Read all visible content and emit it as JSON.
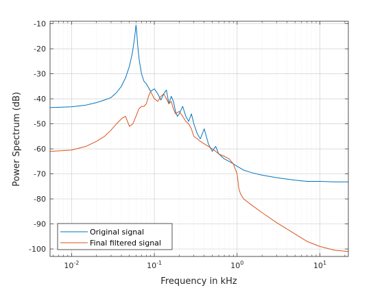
{
  "chart_data": {
    "type": "line",
    "title": "",
    "xlabel": "Frequency in kHz",
    "ylabel": "Power Spectrum (dB)",
    "x_scale": "log",
    "xlim": [
      0.0055,
      22.05
    ],
    "ylim": [
      -103,
      -9
    ],
    "x_ticks": [
      {
        "value": 0.01,
        "base": "10",
        "exp": "-2"
      },
      {
        "value": 0.1,
        "base": "10",
        "exp": "-1"
      },
      {
        "value": 1,
        "base": "10",
        "exp": "0"
      },
      {
        "value": 10,
        "base": "10",
        "exp": "1"
      }
    ],
    "y_ticks": [
      -10,
      -20,
      -30,
      -40,
      -50,
      -60,
      -70,
      -80,
      -90,
      -100
    ],
    "y_tick_labels": [
      "-10",
      "-20",
      "-30",
      "-40",
      "-50",
      "-60",
      "-70",
      "-80",
      "-90",
      "-100"
    ],
    "grid": true,
    "minor_grid": true,
    "legend_placement": "bottom-left",
    "series": [
      {
        "name": "Original signal",
        "color": "#0072BD",
        "x": [
          0.0055,
          0.01,
          0.015,
          0.02,
          0.025,
          0.03,
          0.035,
          0.04,
          0.045,
          0.05,
          0.054,
          0.057,
          0.059,
          0.06,
          0.061,
          0.063,
          0.066,
          0.07,
          0.075,
          0.08,
          0.085,
          0.09,
          0.095,
          0.1,
          0.11,
          0.12,
          0.13,
          0.14,
          0.15,
          0.16,
          0.17,
          0.18,
          0.19,
          0.2,
          0.22,
          0.24,
          0.26,
          0.28,
          0.3,
          0.33,
          0.36,
          0.4,
          0.45,
          0.5,
          0.55,
          0.6,
          0.7,
          0.8,
          0.9,
          1.0,
          1.2,
          1.5,
          2,
          3,
          5,
          7,
          10,
          15,
          22.05
        ],
        "y": [
          -43.5,
          -43.2,
          -42.5,
          -41.5,
          -40.5,
          -39.5,
          -37.5,
          -35,
          -31.5,
          -27,
          -22,
          -17,
          -13,
          -10.5,
          -12.5,
          -19,
          -25,
          -30,
          -33,
          -34,
          -35.5,
          -37,
          -36.5,
          -36,
          -38,
          -40.5,
          -38,
          -36.5,
          -42,
          -39,
          -41,
          -45,
          -47,
          -46,
          -43,
          -47,
          -49,
          -46,
          -50,
          -54,
          -56,
          -52,
          -58,
          -61,
          -59,
          -62,
          -64,
          -65,
          -66,
          -67,
          -68.5,
          -69.5,
          -70.5,
          -71.5,
          -72.5,
          -73,
          -73,
          -73.2,
          -73.2
        ]
      },
      {
        "name": "Final filtered signal",
        "color": "#D95319",
        "x": [
          0.0055,
          0.01,
          0.015,
          0.02,
          0.025,
          0.03,
          0.035,
          0.04,
          0.042,
          0.045,
          0.048,
          0.05,
          0.055,
          0.06,
          0.065,
          0.07,
          0.075,
          0.08,
          0.085,
          0.09,
          0.1,
          0.11,
          0.12,
          0.13,
          0.14,
          0.15,
          0.16,
          0.17,
          0.18,
          0.2,
          0.22,
          0.24,
          0.26,
          0.28,
          0.3,
          0.33,
          0.36,
          0.4,
          0.45,
          0.5,
          0.55,
          0.6,
          0.7,
          0.8,
          0.9,
          1.0,
          1.05,
          1.1,
          1.2,
          1.5,
          2,
          3,
          5,
          7,
          10,
          15,
          22.05
        ],
        "y": [
          -61,
          -60.5,
          -59,
          -57,
          -55,
          -52.5,
          -50,
          -48,
          -47.5,
          -47,
          -49.5,
          -51,
          -50,
          -47,
          -44,
          -43,
          -43,
          -42,
          -39,
          -37,
          -40,
          -41,
          -39,
          -38,
          -40,
          -42,
          -41,
          -44,
          -46,
          -45,
          -47,
          -49,
          -50,
          -52,
          -55,
          -56,
          -57,
          -58,
          -59,
          -60,
          -61,
          -62,
          -63,
          -64,
          -66,
          -70,
          -76,
          -78,
          -80,
          -82.5,
          -85.5,
          -89.5,
          -94,
          -97,
          -99,
          -100.5,
          -101
        ]
      }
    ]
  }
}
